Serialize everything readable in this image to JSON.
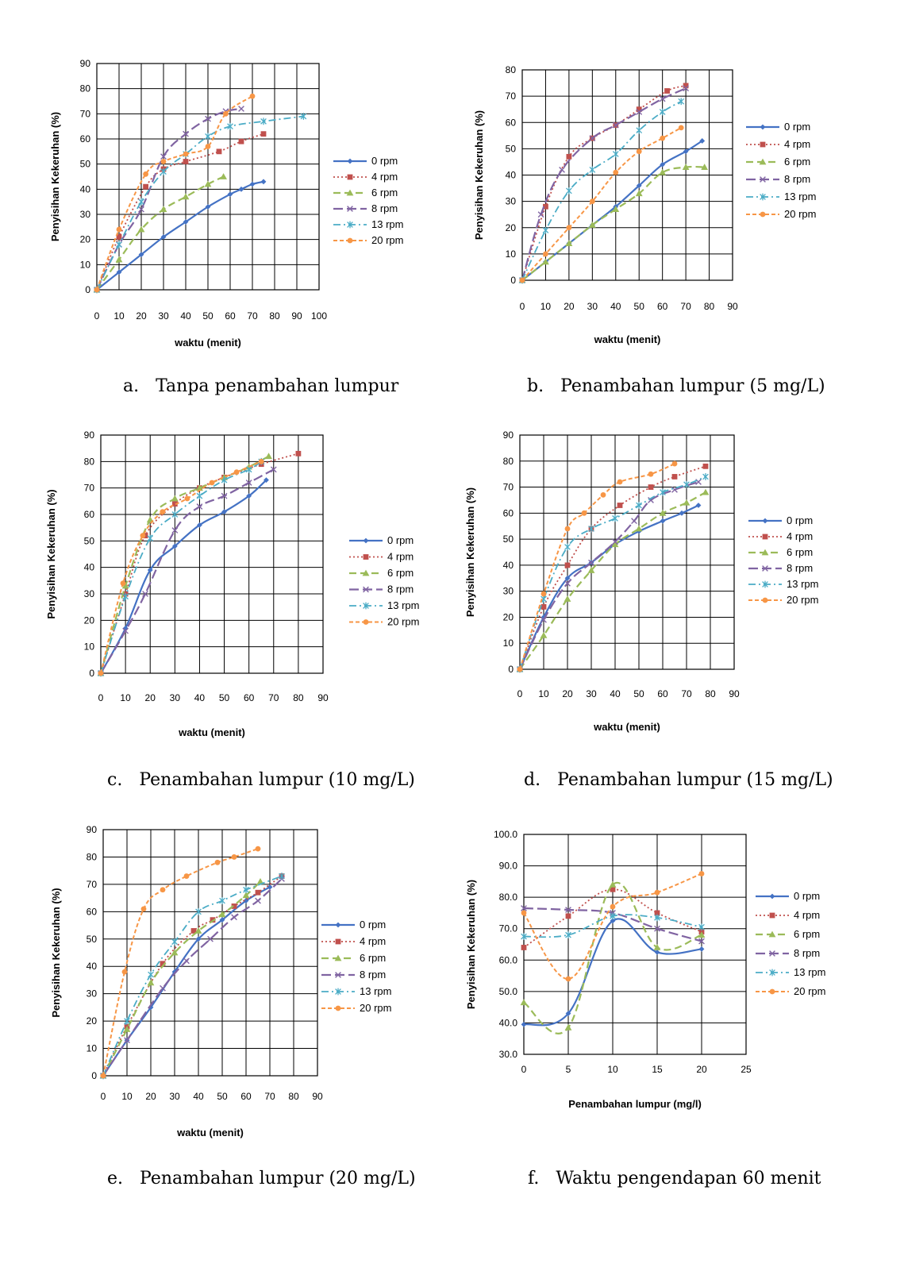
{
  "colors": {
    "0 rpm": "#4472c4",
    "4 rpm": "#c0504d",
    "6 rpm": "#9bbb59",
    "8 rpm": "#8064a2",
    "13 rpm": "#4bacc6",
    "20 rpm": "#f79646"
  },
  "chart_data": [
    {
      "id": "a",
      "type": "line",
      "caption_letter": "a.",
      "caption_text": "Tanpa penambahan lumpur",
      "xlabel": "waktu (menit)",
      "ylabel": "Penyisihan Kekeruhan (%)",
      "xlim": [
        0,
        100
      ],
      "xstep": 10,
      "ylim": [
        0,
        90
      ],
      "ystep": 10,
      "ytick_decimals": 0,
      "grid": true,
      "legend": "right",
      "series": [
        {
          "name": "0 rpm",
          "x": [
            0,
            10,
            20,
            30,
            40,
            50,
            60,
            65,
            70,
            75
          ],
          "y": [
            0,
            7,
            14,
            21,
            27,
            33,
            38,
            40,
            42,
            43
          ]
        },
        {
          "name": "4 rpm",
          "x": [
            0,
            10,
            22,
            30,
            40,
            55,
            65,
            75
          ],
          "y": [
            0,
            21,
            41,
            48,
            51,
            55,
            59,
            62
          ]
        },
        {
          "name": "6 rpm",
          "x": [
            0,
            10,
            20,
            30,
            40,
            50,
            57
          ],
          "y": [
            0,
            12,
            24,
            32,
            37,
            42,
            45
          ]
        },
        {
          "name": "8 rpm",
          "x": [
            0,
            10,
            20,
            30,
            40,
            50,
            58,
            65
          ],
          "y": [
            0,
            18,
            32,
            53,
            62,
            68,
            71,
            72
          ]
        },
        {
          "name": "13 rpm",
          "x": [
            0,
            10,
            20,
            30,
            40,
            50,
            60,
            75,
            93
          ],
          "y": [
            0,
            18,
            35,
            47,
            54,
            61,
            65,
            67,
            69
          ]
        },
        {
          "name": "20 rpm",
          "x": [
            0,
            10,
            22,
            30,
            40,
            50,
            58,
            70
          ],
          "y": [
            0,
            24,
            46,
            51,
            54,
            57,
            70,
            77
          ]
        }
      ]
    },
    {
      "id": "b",
      "type": "line",
      "caption_letter": "b.",
      "caption_text": "Penambahan lumpur (5 mg/L)",
      "xlabel": "waktu (menit)",
      "ylabel": "Penyisihan Kekeruhan (%)",
      "xlim": [
        0,
        90
      ],
      "xstep": 10,
      "ylim": [
        0,
        80
      ],
      "ystep": 10,
      "ytick_decimals": 0,
      "grid": true,
      "legend": "right",
      "series": [
        {
          "name": "0 rpm",
          "x": [
            0,
            10,
            20,
            30,
            40,
            50,
            60,
            70,
            77
          ],
          "y": [
            0,
            7,
            14,
            21,
            28,
            36,
            44,
            49,
            53
          ]
        },
        {
          "name": "4 rpm",
          "x": [
            0,
            10,
            20,
            30,
            40,
            50,
            62,
            70
          ],
          "y": [
            0,
            28,
            47,
            54,
            59,
            65,
            72,
            74
          ]
        },
        {
          "name": "6 rpm",
          "x": [
            0,
            10,
            20,
            30,
            40,
            50,
            60,
            70,
            78
          ],
          "y": [
            0,
            7,
            14,
            21,
            27,
            33,
            41,
            43,
            43
          ]
        },
        {
          "name": "8 rpm",
          "x": [
            0,
            8,
            17,
            30,
            40,
            50,
            60,
            70
          ],
          "y": [
            0,
            25,
            42,
            54,
            59,
            64,
            69,
            73
          ]
        },
        {
          "name": "13 rpm",
          "x": [
            0,
            10,
            20,
            30,
            40,
            50,
            60,
            68
          ],
          "y": [
            0,
            19,
            34,
            42,
            48,
            57,
            64,
            68
          ]
        },
        {
          "name": "20 rpm",
          "x": [
            0,
            10,
            20,
            30,
            40,
            50,
            60,
            68
          ],
          "y": [
            0,
            10,
            20,
            30,
            41,
            49,
            54,
            58
          ]
        }
      ]
    },
    {
      "id": "c",
      "type": "line",
      "caption_letter": "c.",
      "caption_text": "Penambahan lumpur (10 mg/L)",
      "xlabel": "waktu (menit)",
      "ylabel": "Penyisihan Kekeruhan (%)",
      "xlim": [
        0,
        90
      ],
      "xstep": 10,
      "ylim": [
        0,
        90
      ],
      "ystep": 10,
      "ytick_decimals": 0,
      "grid": true,
      "legend": "right",
      "series": [
        {
          "name": "0 rpm",
          "x": [
            0,
            10,
            20,
            30,
            40,
            50,
            60,
            67
          ],
          "y": [
            0,
            17,
            39,
            48,
            56,
            61,
            67,
            73
          ]
        },
        {
          "name": "4 rpm",
          "x": [
            0,
            10,
            18,
            30,
            40,
            50,
            65,
            80
          ],
          "y": [
            0,
            30,
            52,
            64,
            70,
            74,
            79,
            83
          ]
        },
        {
          "name": "6 rpm",
          "x": [
            0,
            10,
            20,
            30,
            40,
            50,
            60,
            68
          ],
          "y": [
            0,
            33,
            58,
            66,
            70,
            74,
            78,
            82
          ]
        },
        {
          "name": "8 rpm",
          "x": [
            0,
            10,
            18,
            30,
            40,
            50,
            60,
            70
          ],
          "y": [
            0,
            16,
            30,
            54,
            63,
            67,
            72,
            77
          ]
        },
        {
          "name": "13 rpm",
          "x": [
            0,
            10,
            20,
            30,
            40,
            50,
            60,
            65
          ],
          "y": [
            0,
            29,
            51,
            60,
            67,
            73,
            77,
            80
          ]
        },
        {
          "name": "20 rpm",
          "x": [
            0,
            9,
            17,
            25,
            35,
            45,
            55,
            65
          ],
          "y": [
            0,
            34,
            52,
            61,
            66,
            72,
            76,
            80
          ]
        }
      ]
    },
    {
      "id": "d",
      "type": "line",
      "caption_letter": "d.",
      "caption_text": "Penambahan lumpur (15 mg/L)",
      "xlabel": "waktu (menit)",
      "ylabel": "Penyisihan Kekeruhan (%)",
      "xlim": [
        0,
        90
      ],
      "xstep": 10,
      "ylim": [
        0,
        90
      ],
      "ystep": 10,
      "ytick_decimals": 0,
      "grid": true,
      "legend": "right",
      "series": [
        {
          "name": "0 rpm",
          "x": [
            0,
            10,
            20,
            30,
            40,
            50,
            60,
            68,
            75
          ],
          "y": [
            0,
            20,
            35,
            41,
            48,
            53,
            57,
            60,
            63
          ]
        },
        {
          "name": "4 rpm",
          "x": [
            0,
            10,
            20,
            30,
            42,
            55,
            65,
            78
          ],
          "y": [
            0,
            24,
            40,
            54,
            63,
            70,
            74,
            78
          ]
        },
        {
          "name": "6 rpm",
          "x": [
            0,
            10,
            20,
            30,
            40,
            50,
            60,
            70,
            78
          ],
          "y": [
            0,
            13,
            27,
            38,
            48,
            54,
            60,
            64,
            68
          ]
        },
        {
          "name": "8 rpm",
          "x": [
            0,
            10,
            20,
            30,
            40,
            48,
            55,
            65,
            75
          ],
          "y": [
            0,
            19,
            33,
            41,
            49,
            57,
            65,
            69,
            72
          ]
        },
        {
          "name": "13 rpm",
          "x": [
            0,
            10,
            20,
            30,
            40,
            50,
            60,
            70,
            78
          ],
          "y": [
            0,
            27,
            47,
            54,
            58,
            63,
            68,
            71,
            74
          ]
        },
        {
          "name": "20 rpm",
          "x": [
            0,
            10,
            20,
            27,
            35,
            42,
            55,
            65
          ],
          "y": [
            0,
            29,
            54,
            60,
            67,
            72,
            75,
            79
          ]
        }
      ]
    },
    {
      "id": "e",
      "type": "line",
      "caption_letter": "e.",
      "caption_text": "Penambahan lumpur (20 mg/L)",
      "xlabel": "waktu (menit)",
      "ylabel": "Penyisihan Kekeruhan (%)",
      "xlim": [
        0,
        90
      ],
      "xstep": 10,
      "ylim": [
        0,
        90
      ],
      "ystep": 10,
      "ytick_decimals": 0,
      "grid": true,
      "legend": "right",
      "series": [
        {
          "name": "0 rpm",
          "x": [
            0,
            10,
            20,
            30,
            40,
            50,
            60,
            70
          ],
          "y": [
            0,
            13,
            25,
            38,
            50,
            57,
            64,
            69
          ]
        },
        {
          "name": "4 rpm",
          "x": [
            0,
            10,
            25,
            38,
            46,
            55,
            65,
            75
          ],
          "y": [
            0,
            18,
            41,
            53,
            57,
            62,
            67,
            73
          ]
        },
        {
          "name": "6 rpm",
          "x": [
            0,
            10,
            20,
            30,
            40,
            50,
            60,
            66
          ],
          "y": [
            0,
            17,
            34,
            45,
            53,
            59,
            66,
            71
          ]
        },
        {
          "name": "8 rpm",
          "x": [
            0,
            10,
            25,
            35,
            45,
            55,
            65,
            75
          ],
          "y": [
            0,
            13,
            32,
            42,
            50,
            58,
            64,
            72
          ]
        },
        {
          "name": "13 rpm",
          "x": [
            0,
            10,
            20,
            30,
            40,
            50,
            60,
            75
          ],
          "y": [
            0,
            20,
            37,
            49,
            60,
            64,
            68,
            73
          ]
        },
        {
          "name": "20 rpm",
          "x": [
            0,
            9,
            17,
            25,
            35,
            48,
            55,
            65
          ],
          "y": [
            0,
            38,
            61,
            68,
            73,
            78,
            80,
            83
          ]
        }
      ]
    },
    {
      "id": "f",
      "type": "line",
      "caption_letter": "f.",
      "caption_text": "Waktu pengendapan 60 menit",
      "xlabel": "Penambahan lumpur (mg/l)",
      "ylabel": "Penyisihan Kekeruhan (%)",
      "xlim": [
        0,
        25
      ],
      "xstep": 5,
      "ylim": [
        30,
        100
      ],
      "ystep": 10,
      "ytick_decimals": 1,
      "grid": true,
      "legend": "right",
      "series": [
        {
          "name": "0 rpm",
          "x": [
            0,
            5,
            10,
            15,
            20
          ],
          "y": [
            39.5,
            43.0,
            72.5,
            62.5,
            63.5
          ]
        },
        {
          "name": "4 rpm",
          "x": [
            0,
            5,
            10,
            15,
            20
          ],
          "y": [
            64.0,
            74.0,
            82.5,
            75.0,
            69.0
          ]
        },
        {
          "name": "6 rpm",
          "x": [
            0,
            5,
            10,
            15,
            20
          ],
          "y": [
            46.5,
            38.5,
            84.0,
            64.0,
            68.0
          ]
        },
        {
          "name": "8 rpm",
          "x": [
            0,
            5,
            10,
            15,
            20
          ],
          "y": [
            76.5,
            76.0,
            75.0,
            70.0,
            66.0
          ]
        },
        {
          "name": "13 rpm",
          "x": [
            0,
            5,
            10,
            15,
            20
          ],
          "y": [
            67.5,
            68.0,
            74.0,
            73.5,
            70.5
          ]
        },
        {
          "name": "20 rpm",
          "x": [
            0,
            5,
            10,
            15,
            20
          ],
          "y": [
            75.0,
            54.0,
            77.0,
            81.5,
            87.5
          ]
        }
      ]
    }
  ]
}
